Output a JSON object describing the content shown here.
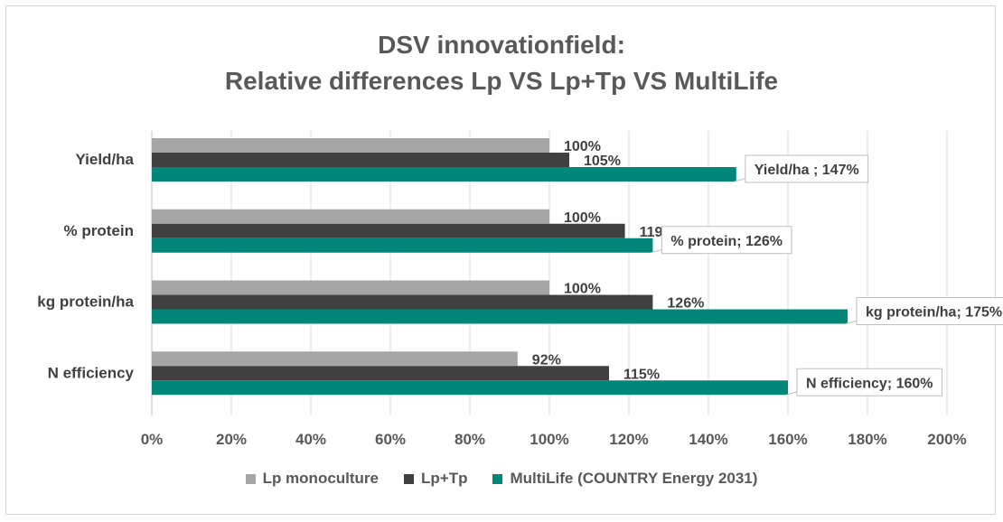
{
  "chart_data": {
    "type": "bar",
    "orientation": "horizontal",
    "title": [
      "DSV innovationfield:",
      "Relative differences Lp VS Lp+Tp VS MultiLife"
    ],
    "categories": [
      "Yield/ha",
      "% protein",
      "kg protein/ha",
      "N efficiency"
    ],
    "series": [
      {
        "name": "Lp monoculture",
        "color": "#a6a6a6",
        "values": [
          100,
          100,
          100,
          92
        ]
      },
      {
        "name": "Lp+Tp",
        "color": "#404040",
        "values": [
          105,
          119,
          126,
          115
        ]
      },
      {
        "name": "MultiLife (COUNTRY Energy 2031)",
        "color": "#00877a",
        "values": [
          147,
          126,
          175,
          160
        ]
      }
    ],
    "data_labels": [
      [
        "100%",
        "105%",
        "Yield/ha ; 147%"
      ],
      [
        "100%",
        "119%",
        "% protein; 126%"
      ],
      [
        "100%",
        "126%",
        "kg protein/ha; 175%"
      ],
      [
        "92%",
        "115%",
        "N efficiency; 160%"
      ]
    ],
    "xlim": [
      0,
      200
    ],
    "x_ticks": [
      "0%",
      "20%",
      "40%",
      "60%",
      "80%",
      "100%",
      "120%",
      "140%",
      "160%",
      "180%",
      "200%"
    ],
    "grid": true,
    "legend_position": "bottom"
  }
}
